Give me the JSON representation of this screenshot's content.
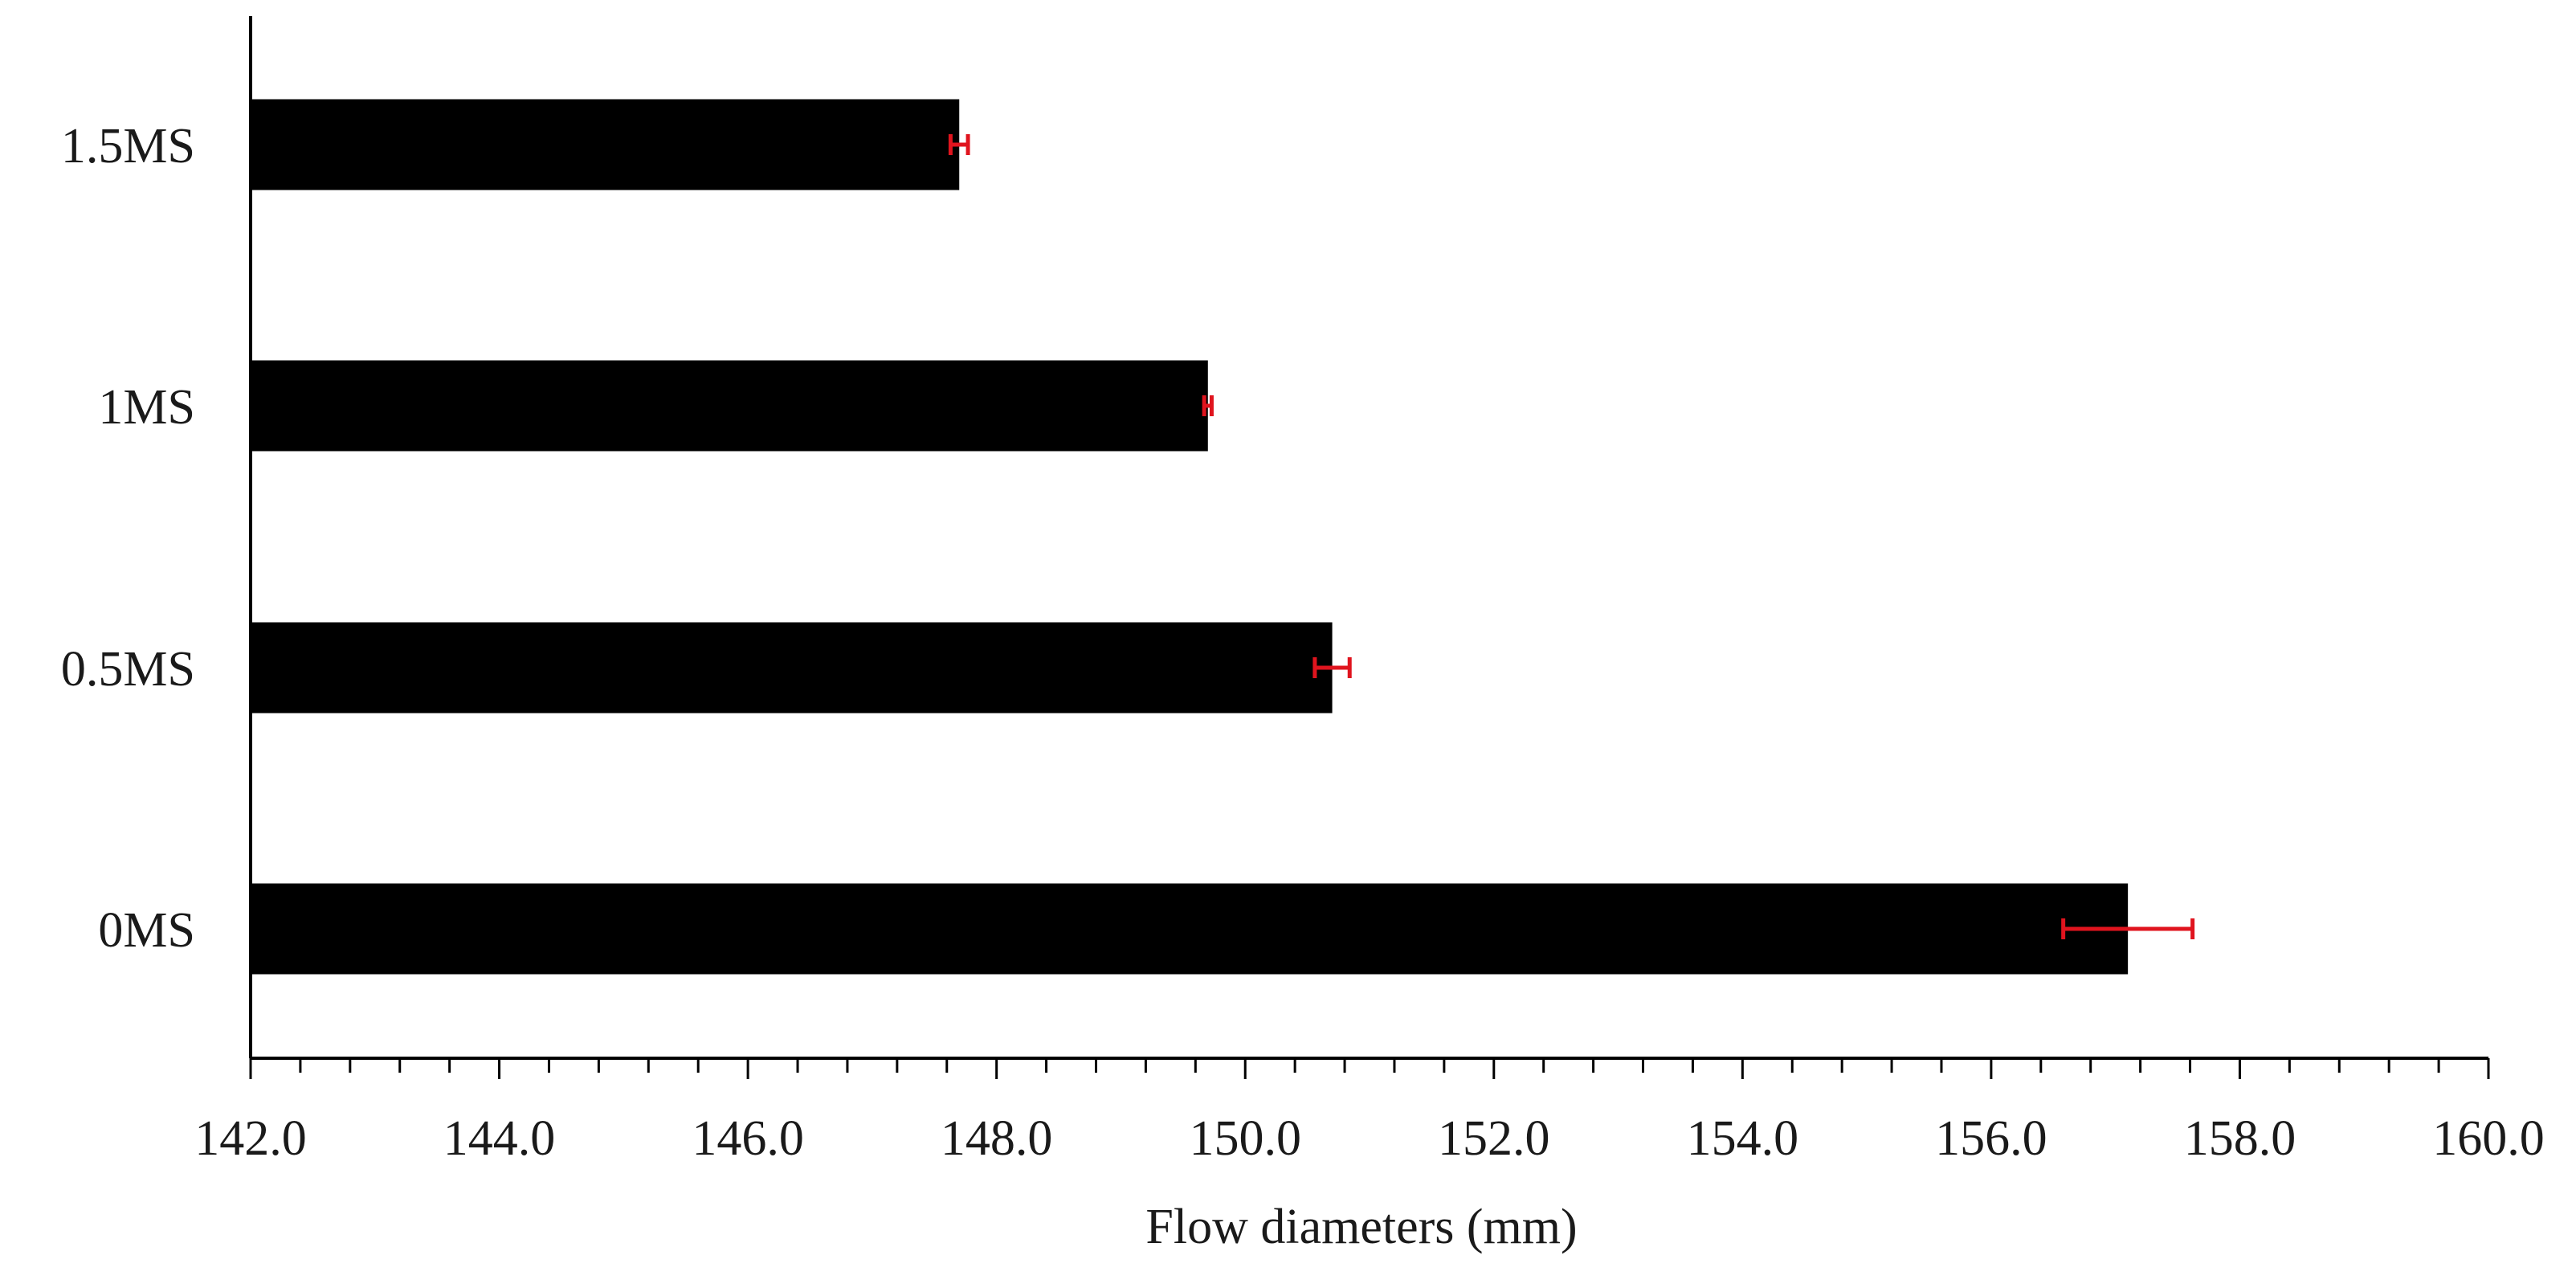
{
  "chart_data": {
    "type": "bar",
    "orientation": "horizontal",
    "categories": [
      "0MS",
      "0.5MS",
      "1MS",
      "1.5MS"
    ],
    "values": [
      157.1,
      150.7,
      149.7,
      147.7
    ],
    "error": [
      0.52,
      0.14,
      0.03,
      0.07
    ],
    "xlabel": "Flow diameters (mm)",
    "ylabel": "",
    "title": "",
    "xlim": [
      142.0,
      160.0
    ],
    "xticks": [
      142.0,
      144.0,
      146.0,
      148.0,
      150.0,
      152.0,
      154.0,
      156.0,
      158.0,
      160.0
    ],
    "xtick_labels": [
      "142.0",
      "144.0",
      "146.0",
      "148.0",
      "150.0",
      "152.0",
      "154.0",
      "156.0",
      "158.0",
      "160.0"
    ],
    "minor_tick_step": 0.4,
    "grid": false,
    "legend": "none",
    "colors": {
      "bar": "#000000",
      "error_bar": "#e0141e",
      "axis": "#000000",
      "text": "#1a1a1a"
    }
  }
}
